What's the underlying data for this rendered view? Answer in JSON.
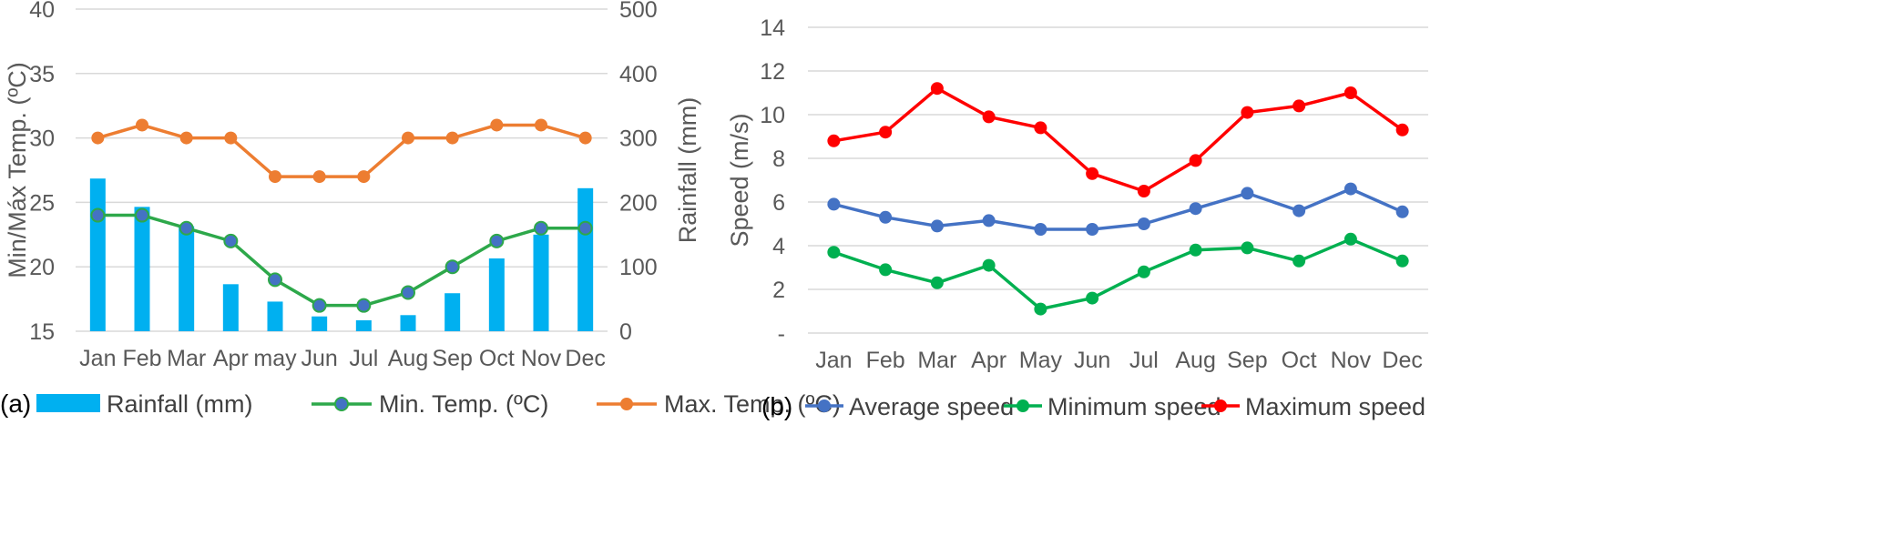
{
  "chart_data": [
    {
      "panel_label": "(a)",
      "type": "bar",
      "categories": [
        "Jan",
        "Feb",
        "Mar",
        "Apr",
        "may",
        "Jun",
        "Jul",
        "Aug",
        "Sep",
        "Oct",
        "Nov",
        "Dec"
      ],
      "ylabel": "Min/Máx Temp. (ºC)",
      "y2label": "Rainfall  (mm)",
      "ylim": [
        15,
        40
      ],
      "yticks": [
        "15",
        "20",
        "25",
        "30",
        "35",
        "40"
      ],
      "y2lim": [
        0,
        500
      ],
      "y2ticks": [
        "0",
        "100",
        "200",
        "300",
        "400",
        "500"
      ],
      "grid": true,
      "legend_position": "bottom",
      "series": [
        {
          "name": "Rainfall (mm)",
          "type": "bar",
          "axis": "y2",
          "color": "#00b0f0",
          "values": [
            237,
            193,
            163,
            73,
            46,
            23,
            17,
            25,
            59,
            113,
            150,
            222
          ]
        },
        {
          "name": "Min. Temp. (ºC)",
          "type": "line",
          "axis": "y",
          "color": "#2da84a",
          "marker_color": "#4472c4",
          "values": [
            24,
            24,
            23,
            22,
            19,
            17,
            17,
            18,
            20,
            22,
            23,
            23
          ]
        },
        {
          "name": "Max. Temp. (ºC)",
          "type": "line",
          "axis": "y",
          "color": "#ed7d31",
          "values": [
            30,
            31,
            30,
            30,
            27,
            27,
            27,
            30,
            30,
            31,
            31,
            30
          ]
        }
      ]
    },
    {
      "panel_label": "(b)",
      "type": "line",
      "categories": [
        "Jan",
        "Feb",
        "Mar",
        "Apr",
        "May",
        "Jun",
        "Jul",
        "Aug",
        "Sep",
        "Oct",
        "Nov",
        "Dec"
      ],
      "ylabel": "Speed (m/s)",
      "ylim": [
        0,
        14
      ],
      "yticks": [
        "-",
        "2",
        "4",
        "6",
        "8",
        "10",
        "12",
        "14"
      ],
      "grid": true,
      "legend_position": "bottom",
      "series": [
        {
          "name": "Average speed",
          "color": "#4472c4",
          "values": [
            5.9,
            5.3,
            4.9,
            5.15,
            4.75,
            4.75,
            5.0,
            5.7,
            6.4,
            5.6,
            6.6,
            5.55
          ]
        },
        {
          "name": "Minimum speed",
          "color": "#00b050",
          "values": [
            3.7,
            2.9,
            2.3,
            3.1,
            1.1,
            1.6,
            2.8,
            3.8,
            3.9,
            3.3,
            4.3,
            3.3
          ]
        },
        {
          "name": "Maximum speed",
          "color": "#ff0000",
          "values": [
            8.8,
            9.2,
            11.2,
            9.9,
            9.4,
            7.3,
            6.5,
            7.9,
            10.1,
            10.4,
            11.0,
            9.3
          ]
        }
      ]
    }
  ]
}
